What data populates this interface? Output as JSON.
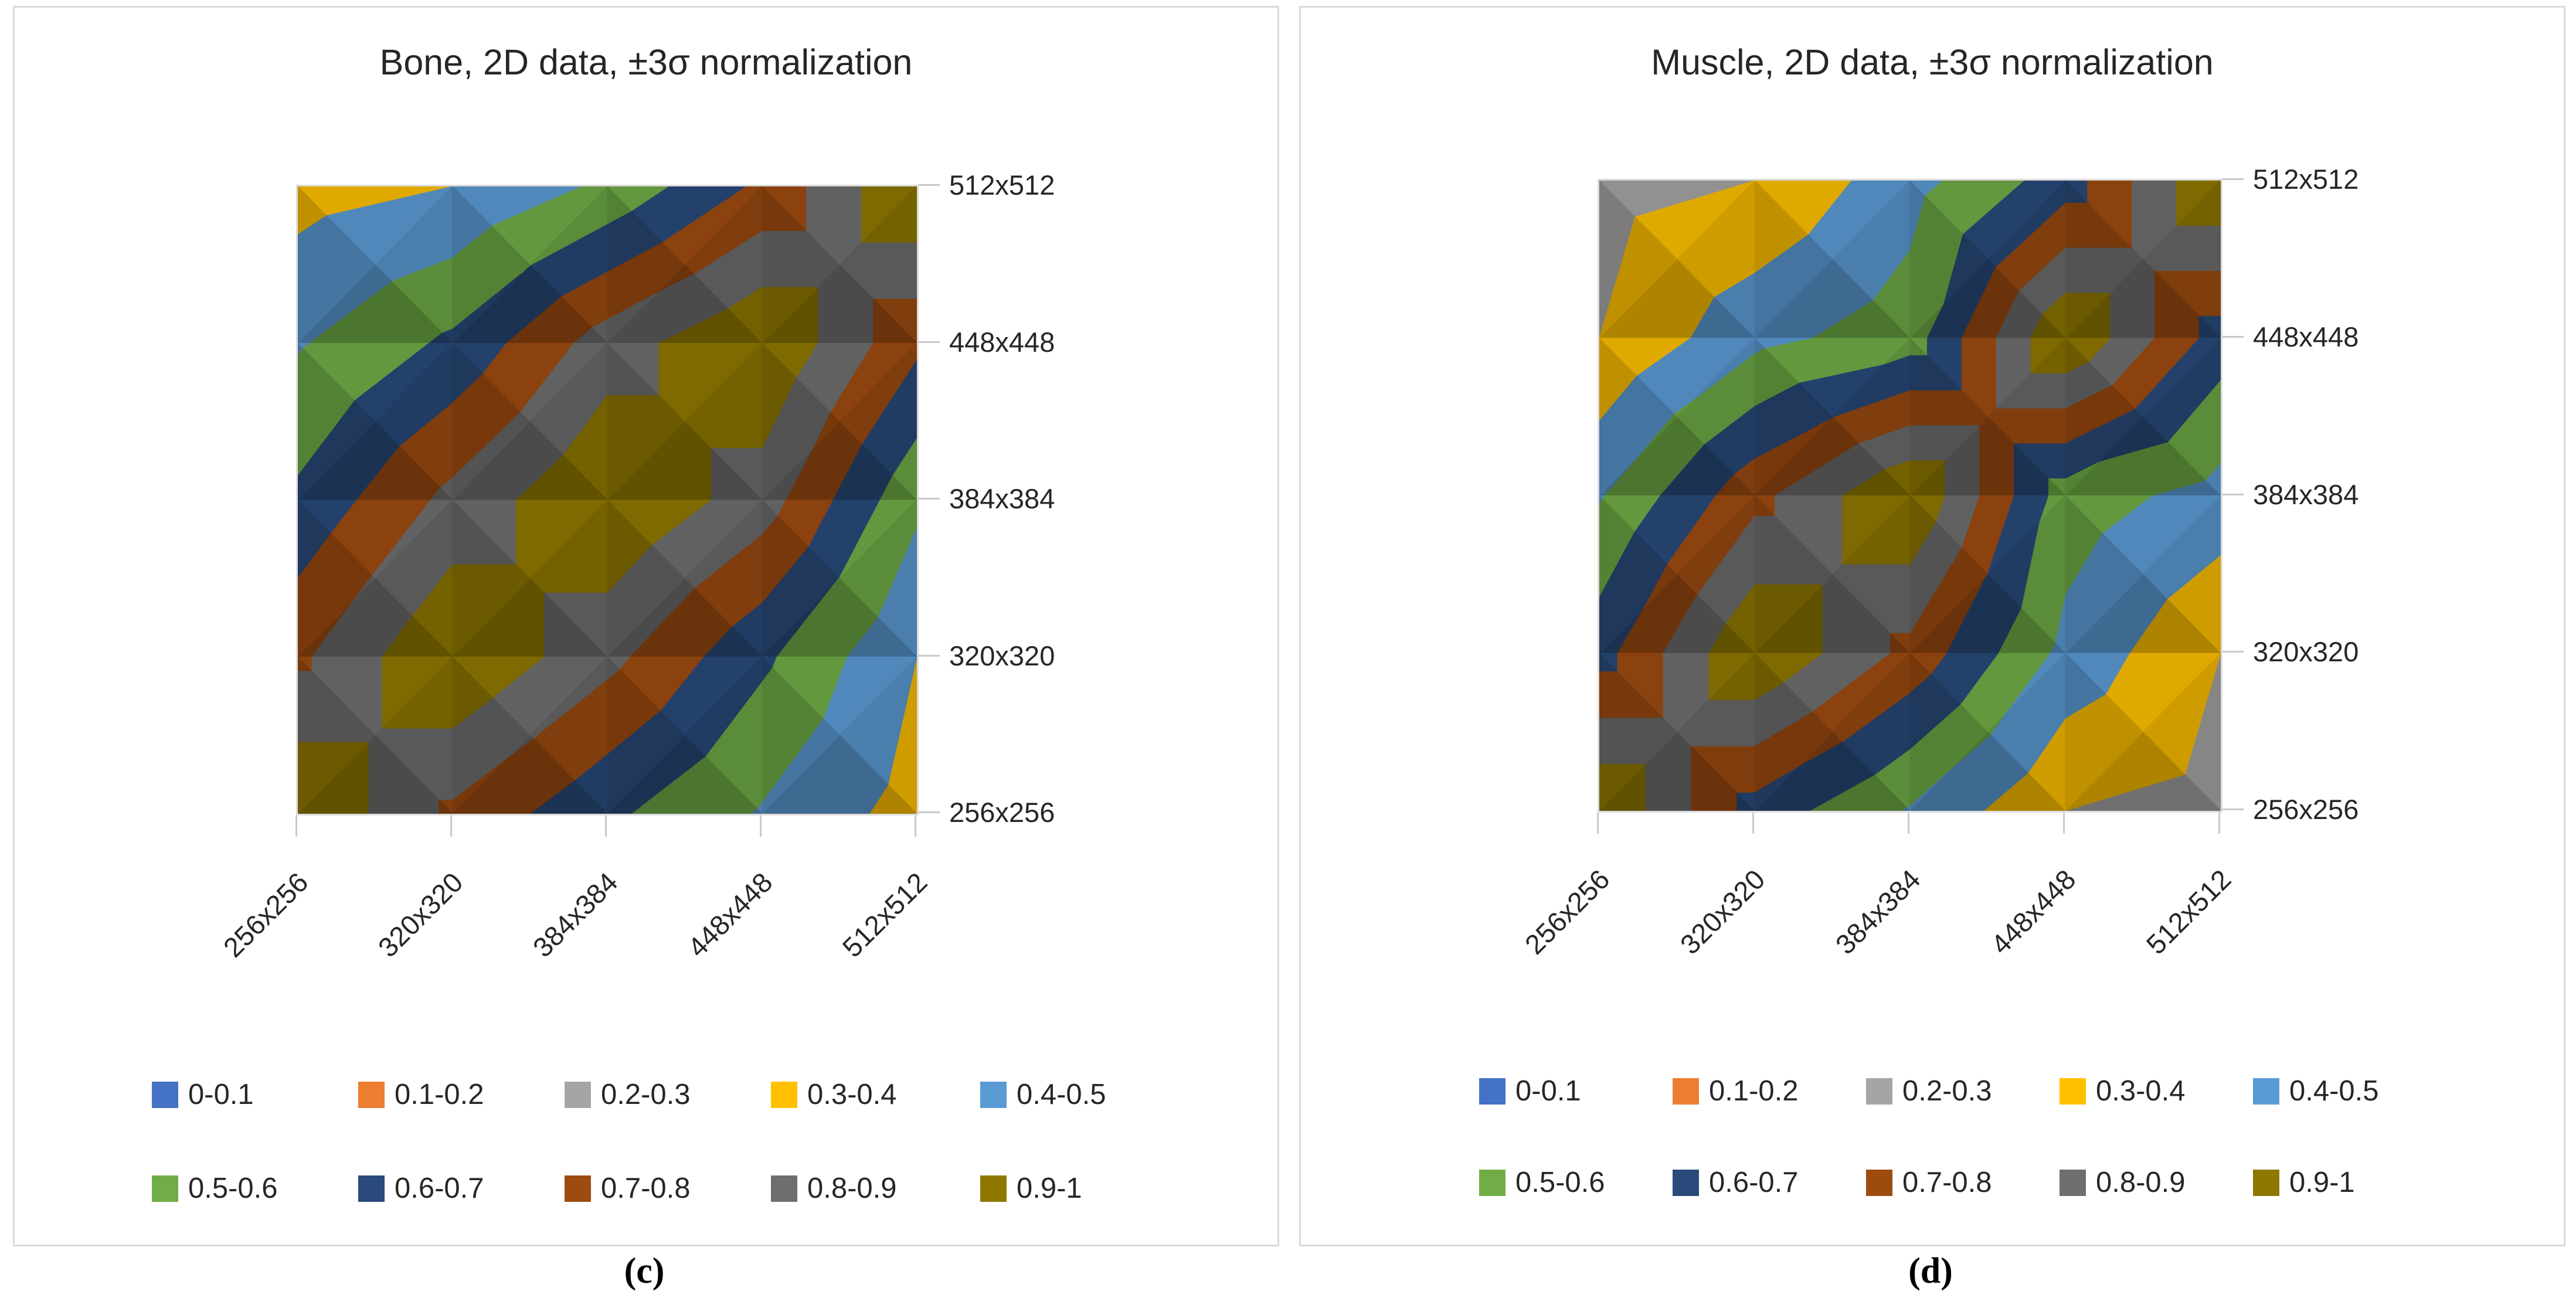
{
  "panels": [
    {
      "caption": "(c)",
      "chart_data": {
        "type": "contour",
        "title": "Bone, 2D data, ±3σ normalization",
        "categories": [
          "256x256",
          "320x320",
          "384x384",
          "448x448",
          "512x512"
        ],
        "y_axis_labels_top_to_bottom": [
          "512x512",
          "448x448",
          "384x384",
          "320x320",
          "256x256"
        ],
        "matrix_row_order": "top_to_bottom (y = 512x512 first), columns left_to_right (x = 256x256 first)",
        "matrix": [
          [
            0.36,
            0.4,
            0.52,
            0.72,
            1.0
          ],
          [
            0.49,
            0.62,
            0.85,
            1.0,
            0.72
          ],
          [
            0.62,
            0.83,
            1.0,
            0.85,
            0.52
          ],
          [
            0.78,
            1.0,
            0.83,
            0.62,
            0.4
          ],
          [
            1.0,
            0.78,
            0.62,
            0.49,
            0.36
          ]
        ],
        "value_range": [
          0,
          1
        ],
        "band_step": 0.1,
        "legend_position": "bottom",
        "bands": [
          {
            "label": "0-0.1",
            "color": "#4472C4"
          },
          {
            "label": "0.1-0.2",
            "color": "#ED7D31"
          },
          {
            "label": "0.2-0.3",
            "color": "#A5A5A5"
          },
          {
            "label": "0.3-0.4",
            "color": "#FFC000"
          },
          {
            "label": "0.4-0.5",
            "color": "#5B9BD5"
          },
          {
            "label": "0.5-0.6",
            "color": "#70AD47"
          },
          {
            "label": "0.6-0.7",
            "color": "#294A7A"
          },
          {
            "label": "0.7-0.8",
            "color": "#9E4B10"
          },
          {
            "label": "0.8-0.9",
            "color": "#6E6E6E"
          },
          {
            "label": "0.9-1",
            "color": "#8F7800"
          }
        ]
      }
    },
    {
      "caption": "(d)",
      "chart_data": {
        "type": "contour",
        "title": "Muscle, 2D data, ±3σ normalization",
        "categories": [
          "256x256",
          "320x320",
          "384x384",
          "448x448",
          "512x512"
        ],
        "y_axis_labels_top_to_bottom": [
          "512x512",
          "448x448",
          "384x384",
          "320x320",
          "256x256"
        ],
        "matrix_row_order": "top_to_bottom (y = 512x512 first), columns left_to_right (x = 256x256 first)",
        "matrix": [
          [
            0.27,
            0.3,
            0.46,
            0.65,
            1.0
          ],
          [
            0.3,
            0.47,
            0.55,
            1.0,
            0.65
          ],
          [
            0.49,
            0.77,
            1.0,
            0.55,
            0.46
          ],
          [
            0.66,
            1.0,
            0.77,
            0.47,
            0.3
          ],
          [
            1.0,
            0.66,
            0.49,
            0.3,
            0.27
          ]
        ],
        "value_range": [
          0,
          1
        ],
        "band_step": 0.1,
        "legend_position": "bottom",
        "bands": [
          {
            "label": "0-0.1",
            "color": "#4472C4"
          },
          {
            "label": "0.1-0.2",
            "color": "#ED7D31"
          },
          {
            "label": "0.2-0.3",
            "color": "#A5A5A5"
          },
          {
            "label": "0.3-0.4",
            "color": "#FFC000"
          },
          {
            "label": "0.4-0.5",
            "color": "#5B9BD5"
          },
          {
            "label": "0.5-0.6",
            "color": "#70AD47"
          },
          {
            "label": "0.6-0.7",
            "color": "#294A7A"
          },
          {
            "label": "0.7-0.8",
            "color": "#9E4B10"
          },
          {
            "label": "0.8-0.9",
            "color": "#6E6E6E"
          },
          {
            "label": "0.9-1",
            "color": "#8F7800"
          }
        ]
      }
    }
  ]
}
